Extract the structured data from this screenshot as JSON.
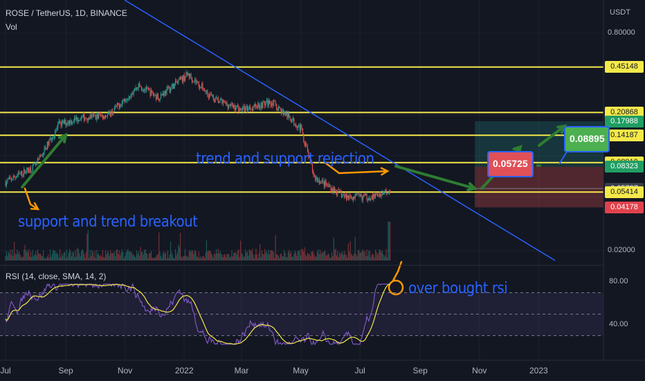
{
  "header": {
    "title": "ROSE / TetherUS, 1D, BINANCE",
    "volume_label": "Vol",
    "currency": "USDT"
  },
  "price_axis": {
    "scale_labels": [
      "0.80000",
      "0.02000"
    ],
    "tags": [
      {
        "text": "0.45148",
        "bg": "#f5e94a",
        "fg": "#131722"
      },
      {
        "text": "0.20868",
        "bg": "#f5e94a",
        "fg": "#131722"
      },
      {
        "text": "0.17988",
        "bg": "#1f9e63",
        "fg": "#ffffff"
      },
      {
        "text": "0.14187",
        "bg": "#f5e94a",
        "fg": "#131722"
      },
      {
        "text": "0.08919",
        "bg": "#f5e94a",
        "fg": "#131722"
      },
      {
        "text": "0.08323",
        "bg": "#1f9e63",
        "fg": "#ffffff"
      },
      {
        "text": "0.05727",
        "bg": "#3a3e4a",
        "fg": "#ffffff"
      },
      {
        "text": "0.05414",
        "bg": "#f5e94a",
        "fg": "#131722"
      },
      {
        "text": "0.04178",
        "bg": "#e0424c",
        "fg": "#ffffff"
      }
    ]
  },
  "time_axis": {
    "labels": [
      "Jul",
      "Sep",
      "Nov",
      "2022",
      "Mar",
      "May",
      "Jul",
      "Sep",
      "Nov",
      "2023"
    ]
  },
  "annotations": {
    "support_breakout": "support and trend breakout",
    "trend_rejection": "trend and support rejection",
    "overbought": "over bought rsi",
    "entry_tag": "0.05725",
    "target_tag": "0.08895"
  },
  "rsi": {
    "header": "RSI (14, close, SMA, 14, 2)",
    "scale_labels": [
      "80.00",
      "40.00"
    ],
    "upper_band": 70,
    "lower_band": 30
  },
  "colors": {
    "background": "#131722",
    "candle_up": "#26a69a",
    "candle_down": "#ef5350",
    "support_line": "#f5e94a",
    "trend_line": "#2962ff",
    "rsi_line": "#7e57c2",
    "rsi_ma": "#f5e94a",
    "arrow_green": "#2e7d32",
    "annotation_blue": "#2962ff",
    "annotation_orange": "#ff9800"
  },
  "chart_data": {
    "type": "candlestick",
    "symbol": "ROSE / TetherUS",
    "interval": "1D",
    "exchange": "BINANCE",
    "y_scale": "log",
    "price_range": [
      0.02,
      0.8
    ],
    "horizontal_levels": [
      0.45148,
      0.20868,
      0.14187,
      0.08919,
      0.05414
    ],
    "last_price": 0.05727,
    "position": {
      "target": 0.17988,
      "entry": 0.08323,
      "stop": 0.04178
    },
    "approx_close_path": [
      {
        "date": "2021-07-01",
        "close": 0.064
      },
      {
        "date": "2021-08-01",
        "close": 0.085
      },
      {
        "date": "2021-08-25",
        "close": 0.17
      },
      {
        "date": "2021-09-15",
        "close": 0.19
      },
      {
        "date": "2021-10-15",
        "close": 0.2
      },
      {
        "date": "2021-11-15",
        "close": 0.33
      },
      {
        "date": "2021-12-05",
        "close": 0.27
      },
      {
        "date": "2022-01-05",
        "close": 0.4
      },
      {
        "date": "2022-02-01",
        "close": 0.26
      },
      {
        "date": "2022-03-01",
        "close": 0.22
      },
      {
        "date": "2022-04-01",
        "close": 0.25
      },
      {
        "date": "2022-05-01",
        "close": 0.16
      },
      {
        "date": "2022-05-15",
        "close": 0.07
      },
      {
        "date": "2022-06-15",
        "close": 0.05
      },
      {
        "date": "2022-07-15",
        "close": 0.05
      },
      {
        "date": "2022-08-01",
        "close": 0.057
      }
    ]
  }
}
